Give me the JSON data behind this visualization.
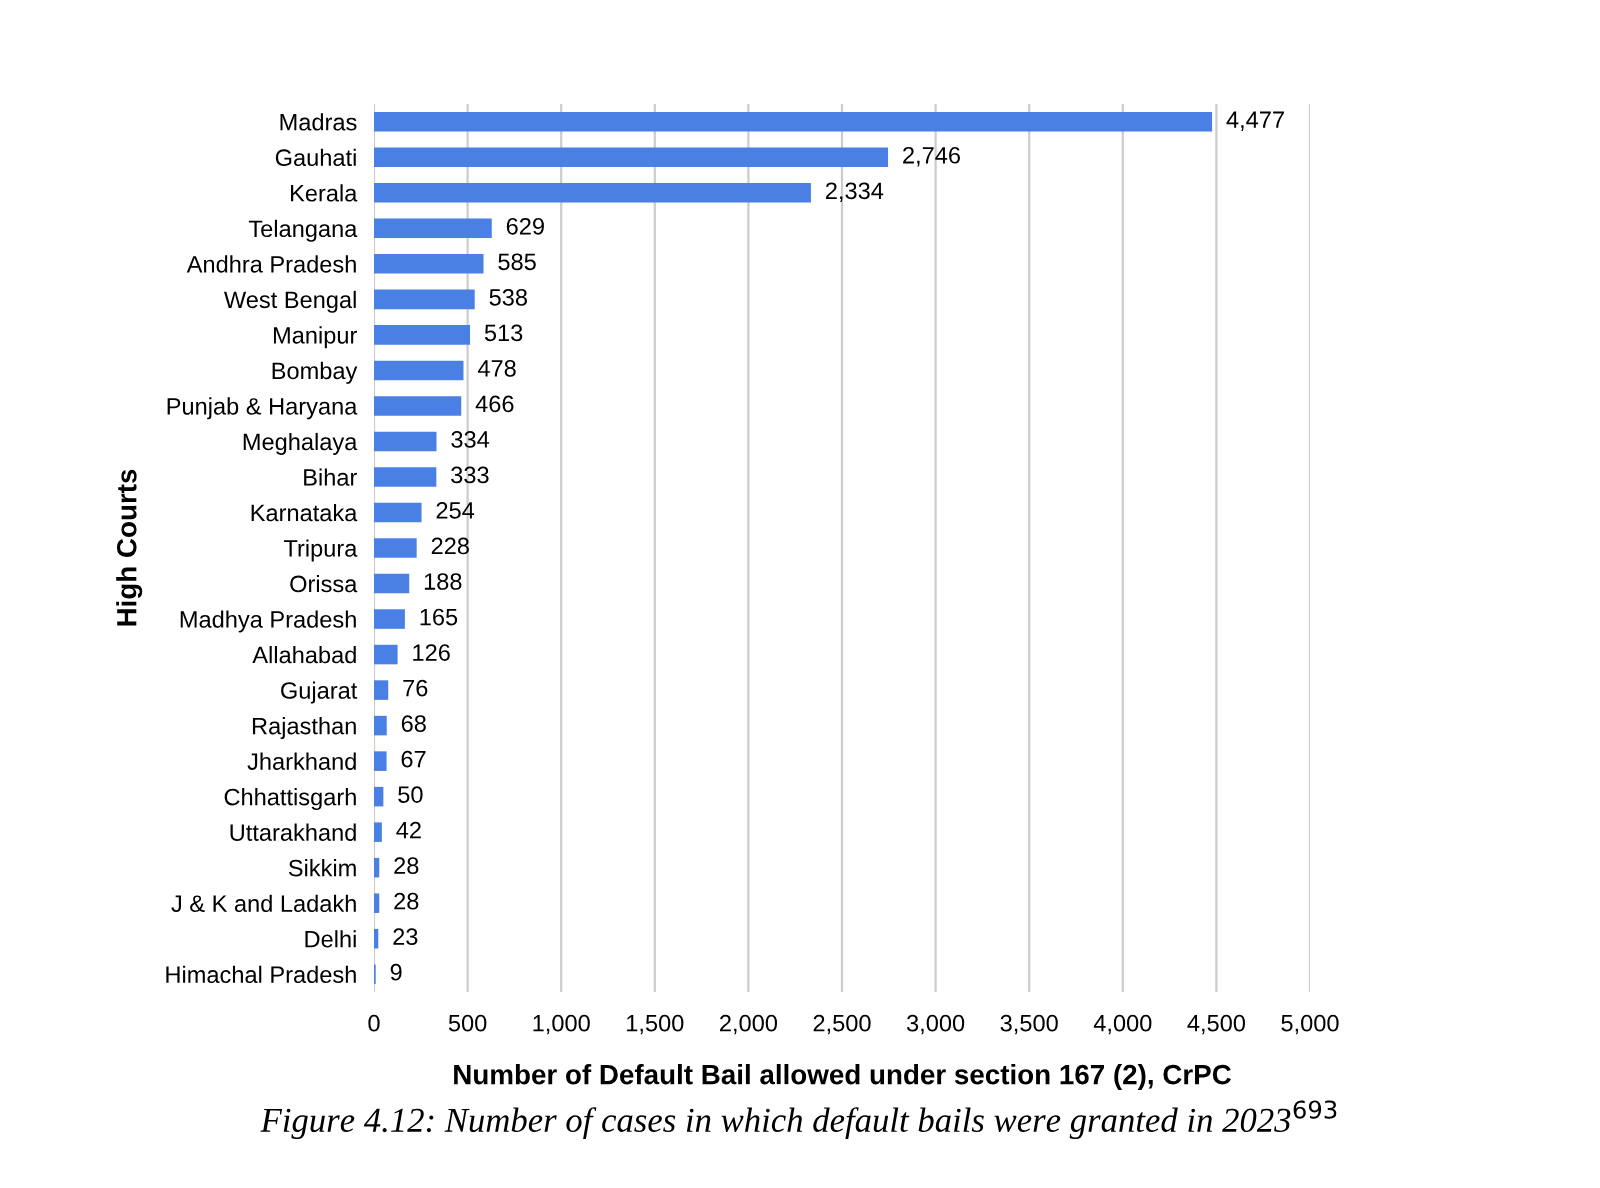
{
  "chart_data": {
    "type": "bar",
    "orientation": "horizontal",
    "categories": [
      "Madras",
      "Gauhati",
      "Kerala",
      "Telangana",
      "Andhra Pradesh",
      "West Bengal",
      "Manipur",
      "Bombay",
      "Punjab & Haryana",
      "Meghalaya",
      "Bihar",
      "Karnataka",
      "Tripura",
      "Orissa",
      "Madhya Pradesh",
      "Allahabad",
      "Gujarat",
      "Rajasthan",
      "Jharkhand",
      "Chhattisgarh",
      "Uttarakhand",
      "Sikkim",
      "J & K and Ladakh",
      "Delhi",
      "Himachal Pradesh"
    ],
    "values": [
      4477,
      2746,
      2334,
      629,
      585,
      538,
      513,
      478,
      466,
      334,
      333,
      254,
      228,
      188,
      165,
      126,
      76,
      68,
      67,
      50,
      42,
      28,
      28,
      23,
      9
    ],
    "value_labels": [
      "4,477",
      "2,746",
      "2,334",
      "629",
      "585",
      "538",
      "513",
      "478",
      "466",
      "334",
      "333",
      "254",
      "228",
      "188",
      "165",
      "126",
      "76",
      "68",
      "67",
      "50",
      "42",
      "28",
      "28",
      "23",
      "9"
    ],
    "color": "#4a7fe3",
    "xlabel": "Number of Default Bail allowed under section 167 (2), CrPC",
    "ylabel": "High Courts",
    "xlim": [
      0,
      5000
    ],
    "xticks": [
      0,
      500,
      {
        "value": 1000,
        "label": "1,000"
      },
      {
        "value": 1500,
        "label": "1,500"
      },
      {
        "value": 2000,
        "label": "2,000"
      },
      {
        "value": 2500,
        "label": "2,500"
      },
      {
        "value": 3000,
        "label": "3,000"
      },
      {
        "value": 3500,
        "label": "3,500"
      },
      {
        "value": 4000,
        "label": "4,000"
      },
      {
        "value": 4500,
        "label": "4,500"
      },
      {
        "value": 5000,
        "label": "5,000"
      }
    ],
    "grid": "x",
    "annotations": [
      "Figure 4.12: Number of cases in which default bails were granted in 2023$^{693}$"
    ]
  }
}
